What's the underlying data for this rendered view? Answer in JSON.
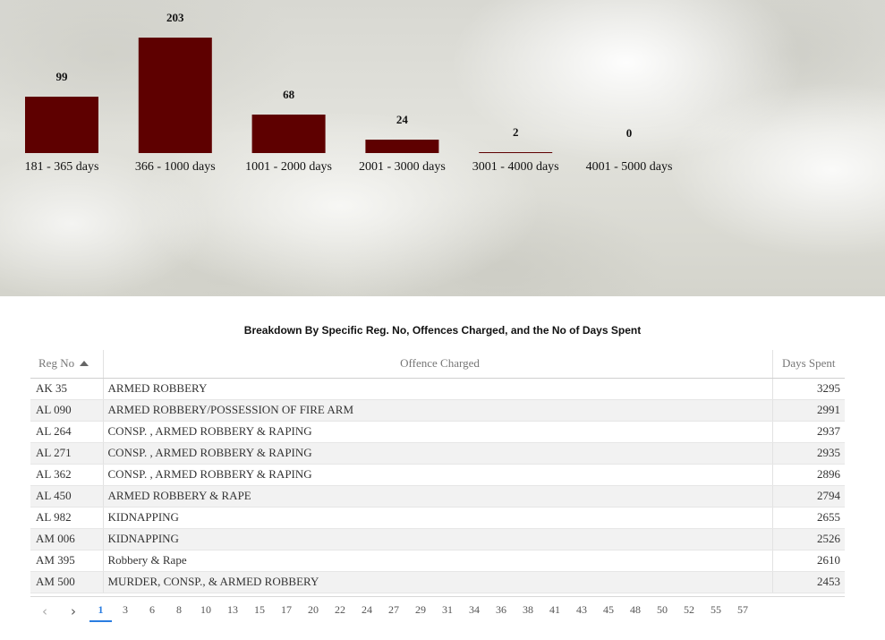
{
  "chart_data": {
    "type": "bar",
    "categories": [
      "181 - 365 days",
      "366 - 1000 days",
      "1001 - 2000 days",
      "2001 - 3000 days",
      "3001 - 4000 days",
      "4001 - 5000 days"
    ],
    "values": [
      99,
      203,
      68,
      24,
      2,
      0
    ],
    "bar_color": "#5e0000"
  },
  "table": {
    "title": "Breakdown By Specific Reg. No, Offences Charged, and the No of Days Spent",
    "headers": {
      "reg": "Reg No",
      "offence": "Offence Charged",
      "days": "Days Spent"
    },
    "sort": "ascending",
    "rows": [
      {
        "reg": "AK 35",
        "offence": "ARMED ROBBERY",
        "days": "3295"
      },
      {
        "reg": "AL 090",
        "offence": "ARMED ROBBERY/POSSESSION OF FIRE ARM",
        "days": "2991"
      },
      {
        "reg": "AL 264",
        "offence": "CONSP. , ARMED ROBBERY & RAPING",
        "days": "2937"
      },
      {
        "reg": "AL 271",
        "offence": "CONSP. , ARMED ROBBERY & RAPING",
        "days": "2935"
      },
      {
        "reg": "AL 362",
        "offence": "CONSP. , ARMED ROBBERY & RAPING",
        "days": "2896"
      },
      {
        "reg": "AL 450",
        "offence": "ARMED ROBBERY & RAPE",
        "days": "2794"
      },
      {
        "reg": "AL 982",
        "offence": "KIDNAPPING",
        "days": "2655"
      },
      {
        "reg": "AM 006",
        "offence": "KIDNAPPING",
        "days": "2526"
      },
      {
        "reg": "AM 395",
        "offence": "Robbery & Rape",
        "days": "2610"
      },
      {
        "reg": "AM 500",
        "offence": "MURDER, CONSP., & ARMED ROBBERY",
        "days": "2453"
      }
    ]
  },
  "pagination": {
    "prev_icon": "chevron-left-icon",
    "next_icon": "chevron-right-icon",
    "prev_glyph": "‹",
    "next_glyph": "›",
    "current": "1",
    "pages": [
      "1",
      "3",
      "6",
      "8",
      "10",
      "13",
      "15",
      "17",
      "20",
      "22",
      "24",
      "27",
      "29",
      "31",
      "34",
      "36",
      "38",
      "41",
      "43",
      "45",
      "48",
      "50",
      "52",
      "55",
      "57"
    ]
  }
}
